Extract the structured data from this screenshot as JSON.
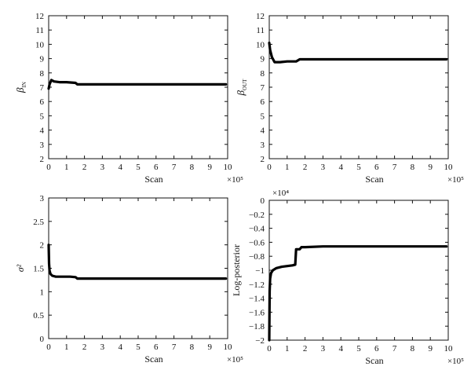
{
  "chart_data": [
    {
      "type": "line",
      "id": "beta-in",
      "xlabel": "Scan",
      "ylabel": "β_IN",
      "x_multiplier": "×10⁵",
      "xlim": [
        0,
        10
      ],
      "ylim": [
        2,
        12
      ],
      "xticks": [
        0,
        1,
        2,
        3,
        4,
        5,
        6,
        7,
        8,
        9,
        10
      ],
      "yticks": [
        2,
        3,
        4,
        5,
        6,
        7,
        8,
        9,
        10,
        11,
        12
      ],
      "grid": false,
      "series": [
        {
          "x": [
            0,
            0.05,
            0.15,
            0.3,
            0.6,
            1.0,
            1.5,
            1.6,
            2.0,
            3.0,
            4.0,
            5.0,
            6.0,
            7.0,
            8.0,
            9.0,
            9.9
          ],
          "y": [
            6.9,
            7.2,
            7.5,
            7.4,
            7.35,
            7.35,
            7.3,
            7.2,
            7.2,
            7.2,
            7.2,
            7.2,
            7.2,
            7.2,
            7.2,
            7.2,
            7.2
          ]
        }
      ]
    },
    {
      "type": "line",
      "id": "beta-out",
      "xlabel": "Scan",
      "ylabel": "β_OUT",
      "x_multiplier": "×10⁵",
      "xlim": [
        0,
        10
      ],
      "ylim": [
        2,
        12
      ],
      "xticks": [
        0,
        1,
        2,
        3,
        4,
        5,
        6,
        7,
        8,
        9,
        10
      ],
      "yticks": [
        2,
        3,
        4,
        5,
        6,
        7,
        8,
        9,
        10,
        11,
        12
      ],
      "grid": false,
      "series": [
        {
          "x": [
            0,
            0.05,
            0.15,
            0.3,
            0.6,
            1.0,
            1.5,
            1.7,
            2.0,
            3.0,
            4.0,
            5.0,
            6.0,
            7.0,
            8.0,
            9.0,
            9.9
          ],
          "y": [
            10.1,
            9.6,
            9.1,
            8.75,
            8.75,
            8.8,
            8.8,
            8.95,
            8.95,
            8.95,
            8.95,
            8.95,
            8.95,
            8.95,
            8.95,
            8.95,
            8.95
          ]
        }
      ]
    },
    {
      "type": "line",
      "id": "sigma2",
      "xlabel": "Scan",
      "ylabel": "σ²",
      "x_multiplier": "×10⁵",
      "xlim": [
        0,
        10
      ],
      "ylim": [
        0,
        3
      ],
      "xticks": [
        0,
        1,
        2,
        3,
        4,
        5,
        6,
        7,
        8,
        9,
        10
      ],
      "yticks": [
        0,
        0.5,
        1,
        1.5,
        2,
        2.5,
        3
      ],
      "grid": false,
      "series": [
        {
          "x": [
            0,
            0.02,
            0.05,
            0.1,
            0.2,
            0.4,
            0.8,
            1.2,
            1.5,
            1.6,
            2.0,
            3.0,
            4.0,
            5.0,
            6.0,
            7.0,
            8.0,
            9.0,
            9.9
          ],
          "y": [
            2.0,
            1.6,
            1.45,
            1.38,
            1.34,
            1.32,
            1.32,
            1.32,
            1.31,
            1.28,
            1.28,
            1.28,
            1.28,
            1.28,
            1.28,
            1.28,
            1.28,
            1.28,
            1.28
          ]
        }
      ]
    },
    {
      "type": "line",
      "id": "log-posterior",
      "xlabel": "Scan",
      "ylabel": "Log-posterior",
      "x_multiplier": "×10⁵",
      "y_multiplier": "×10⁴",
      "xlim": [
        0,
        10
      ],
      "ylim": [
        -2,
        0
      ],
      "xticks": [
        0,
        1,
        2,
        3,
        4,
        5,
        6,
        7,
        8,
        9,
        10
      ],
      "yticks": [
        0,
        -0.2,
        -0.4,
        -0.6,
        -0.8,
        -1,
        -1.2,
        -1.4,
        -1.6,
        -1.8,
        -2
      ],
      "grid": false,
      "series": [
        {
          "x": [
            0,
            0.02,
            0.05,
            0.1,
            0.2,
            0.4,
            0.7,
            1.0,
            1.3,
            1.45,
            1.5,
            1.55,
            1.7,
            1.8,
            2.0,
            3.0,
            4.0,
            5.0,
            6.0,
            7.0,
            8.0,
            9.0,
            9.9
          ],
          "y": [
            -2.0,
            -1.3,
            -1.12,
            -1.04,
            -1.0,
            -0.97,
            -0.95,
            -0.94,
            -0.93,
            -0.92,
            -0.7,
            -0.7,
            -0.7,
            -0.67,
            -0.67,
            -0.66,
            -0.66,
            -0.66,
            -0.66,
            -0.66,
            -0.66,
            -0.66,
            -0.66
          ]
        }
      ]
    }
  ]
}
